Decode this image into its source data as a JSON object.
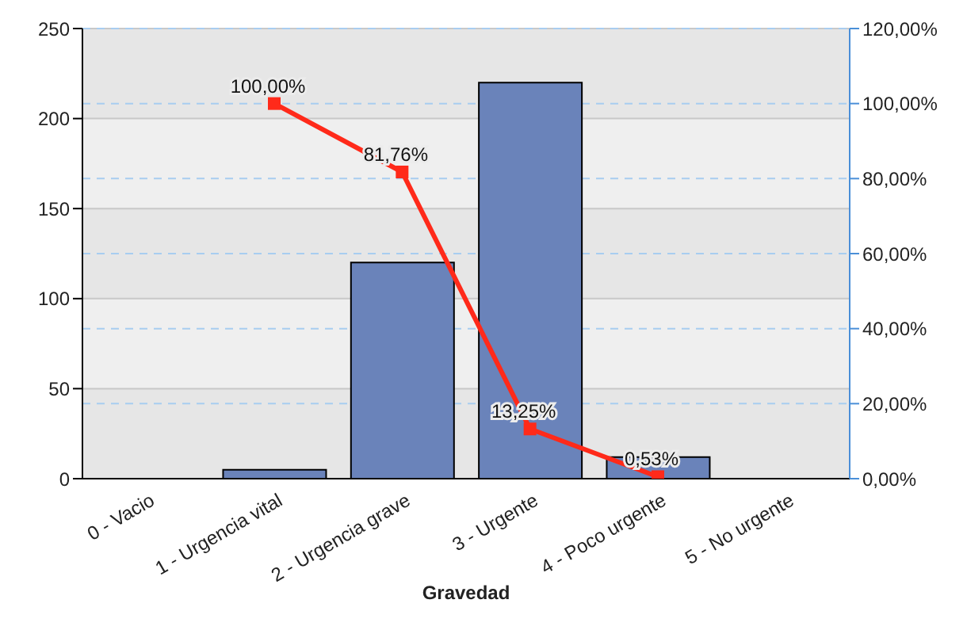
{
  "chart_data": {
    "type": "bar",
    "xlabel": "Gravedad",
    "categories": [
      "0 - Vacio",
      "1 - Urgencia vital",
      "2 - Urgencia grave",
      "3 - Urgente",
      "4 - Poco urgente",
      "5 - No urgente"
    ],
    "series": [
      {
        "color": "#6a83ba",
        "values": [
          0,
          5,
          120,
          220,
          12,
          0
        ]
      },
      {
        "type": "line",
        "axis": "y2",
        "color": "#ff2a1a",
        "marker": "square",
        "values": [
          null,
          100,
          81.76,
          13.25,
          0.53,
          null
        ],
        "value_labels": [
          null,
          "100,00%",
          "81,76%",
          "13,25%",
          "0,53%",
          null
        ]
      }
    ],
    "ylim": [
      0,
      250
    ],
    "yticks": [
      0,
      50,
      100,
      150,
      200,
      250
    ],
    "y2lim": [
      0,
      120
    ],
    "y2ticks": [
      {
        "value": 0,
        "label": "0,00%"
      },
      {
        "value": 20,
        "label": "20,00%"
      },
      {
        "value": 40,
        "label": "40,00%"
      },
      {
        "value": 60,
        "label": "60,00%"
      },
      {
        "value": 80,
        "label": "80,00%"
      },
      {
        "value": 100,
        "label": "100,00%"
      },
      {
        "value": 120,
        "label": "120,00%"
      }
    ],
    "grid": true
  }
}
